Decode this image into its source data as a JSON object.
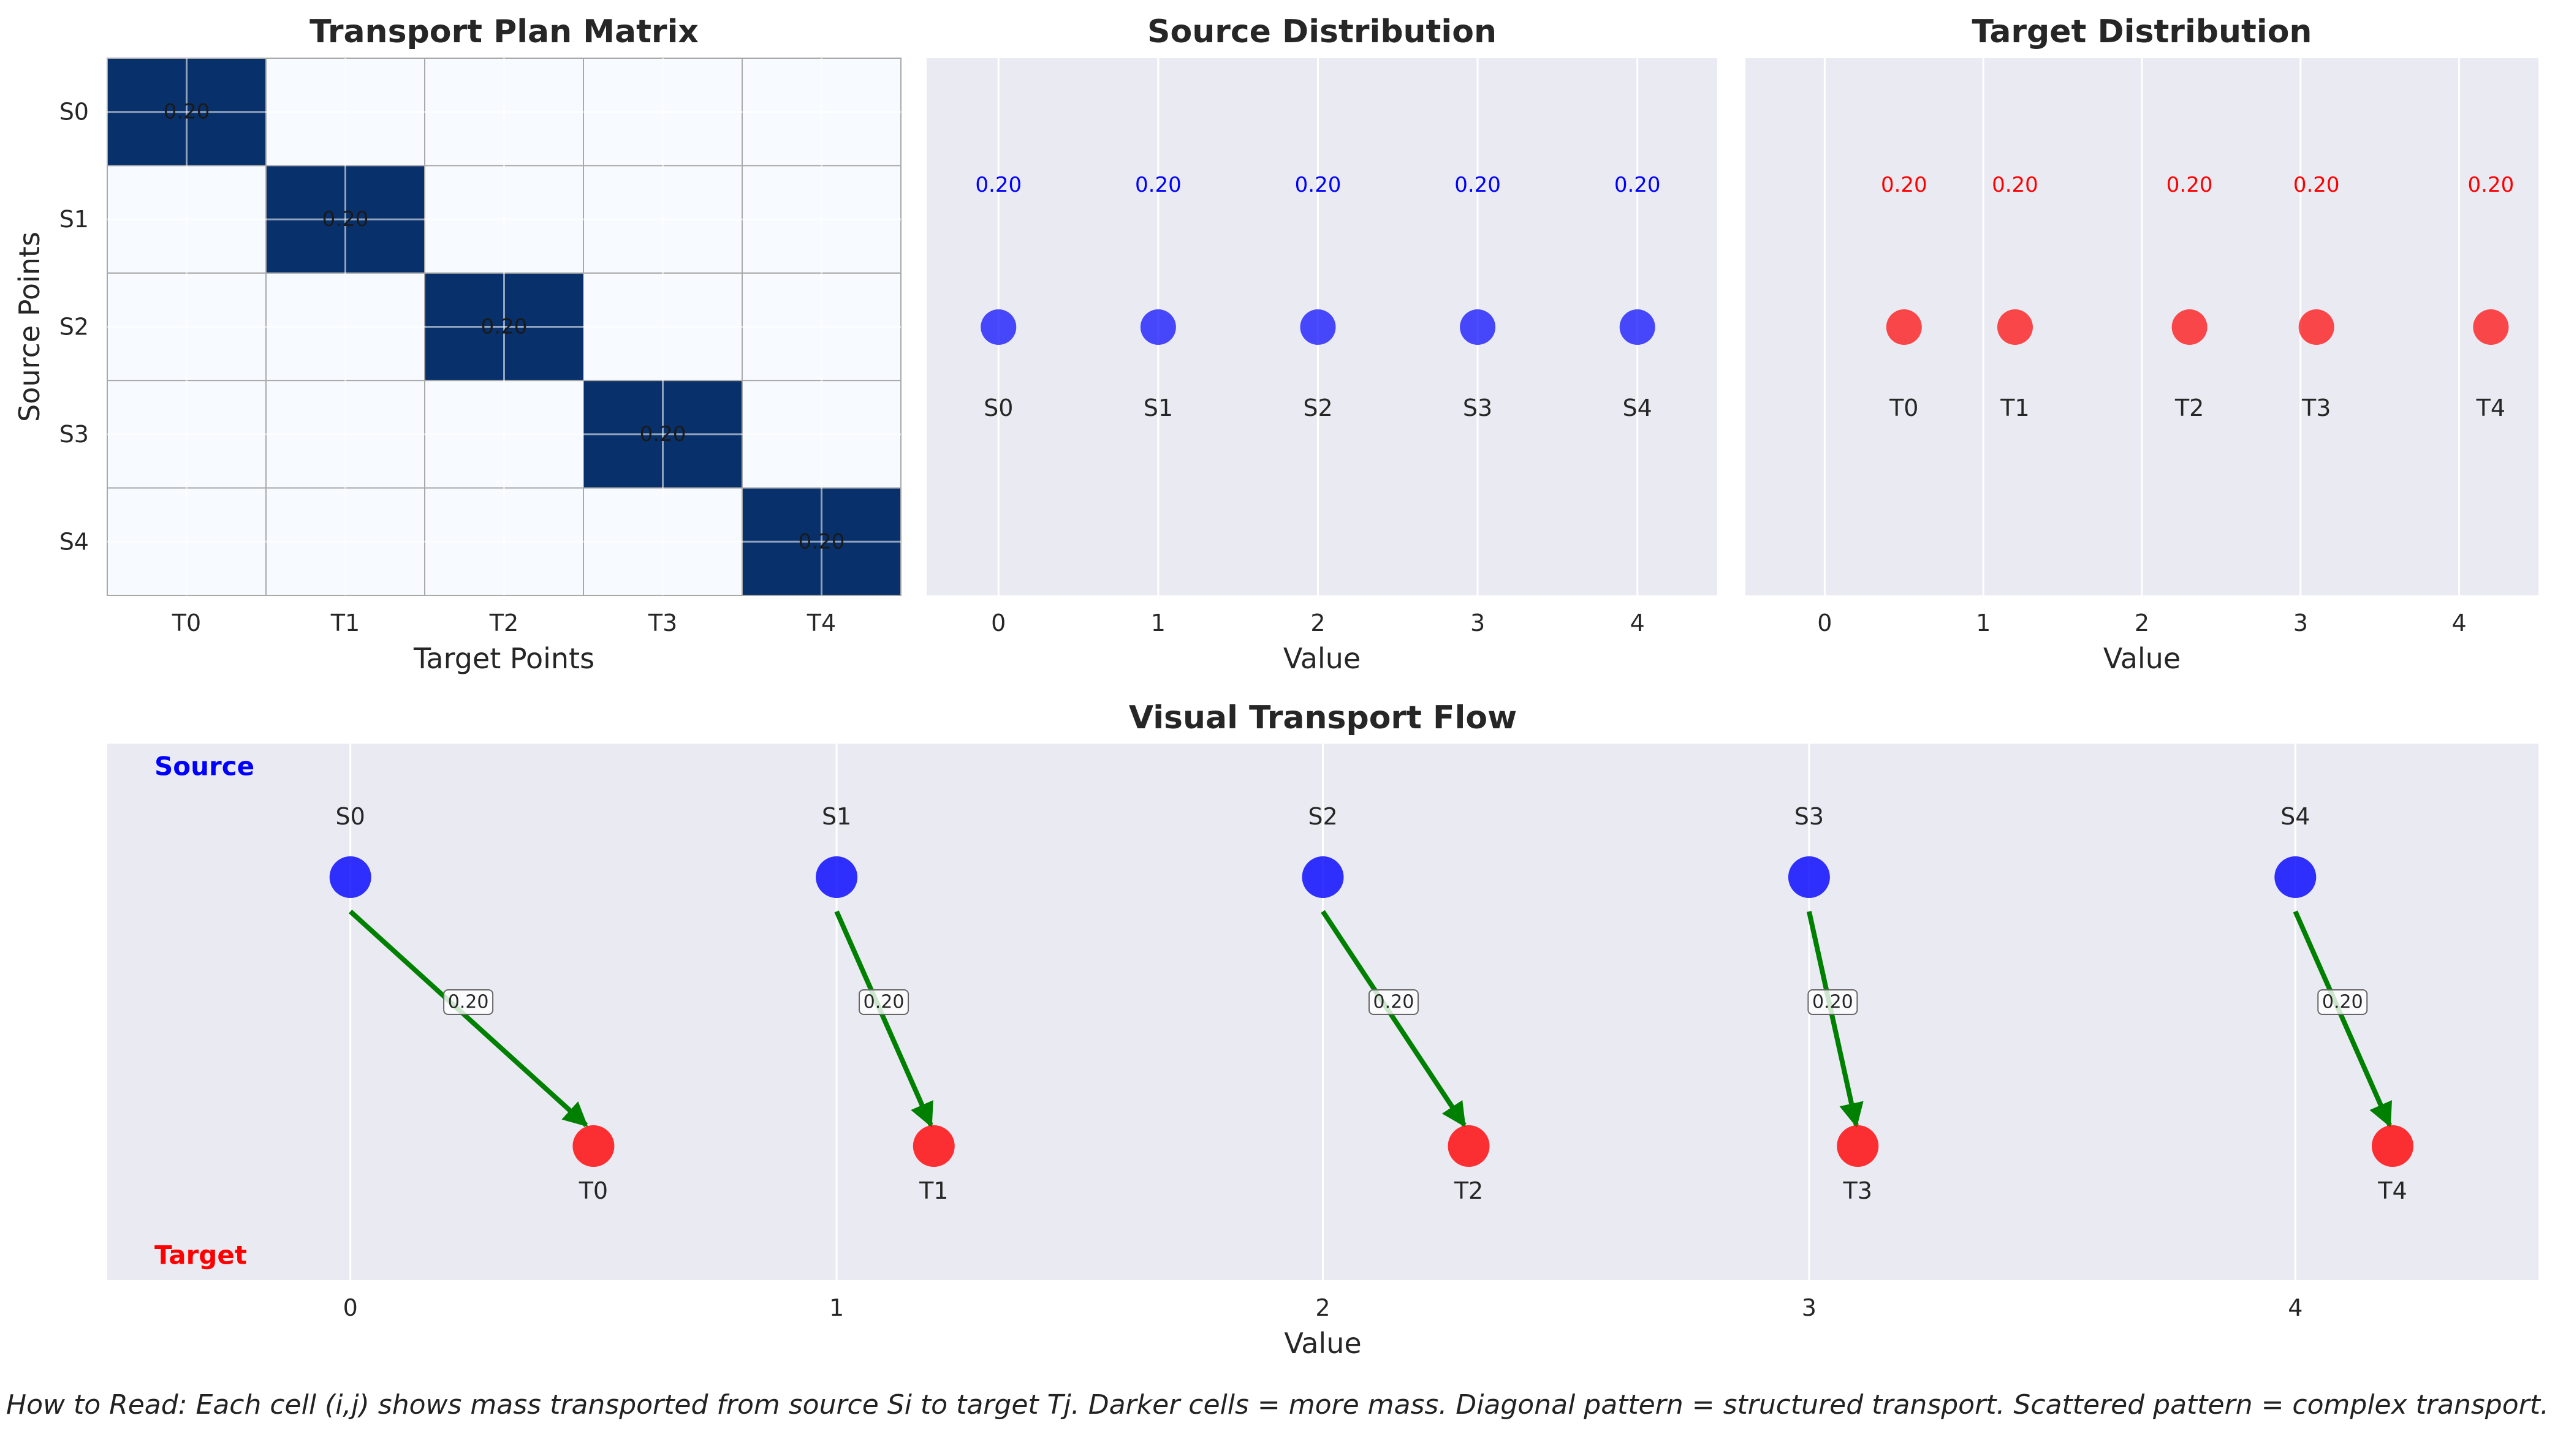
{
  "colors": {
    "panel_bg": "#eaeaf2",
    "grid": "#ffffff",
    "heat_high": "#08306b",
    "heat_low": "#f7fbff",
    "source": "#0000ff",
    "target": "#ff0000",
    "arrow": "#008000",
    "text": "#262626"
  },
  "caption": "How to Read: Each cell (i,j) shows mass transported from source Si to target Tj. Darker cells = more mass. Diagonal pattern = structured transport. Scattered pattern = complex transport.",
  "chart_data": [
    {
      "id": "matrix",
      "type": "heatmap",
      "title": "Transport Plan Matrix",
      "xlabel": "Target Points",
      "ylabel": "Source Points",
      "row_labels": [
        "S0",
        "S1",
        "S2",
        "S3",
        "S4"
      ],
      "col_labels": [
        "T0",
        "T1",
        "T2",
        "T3",
        "T4"
      ],
      "values": [
        [
          0.2,
          0,
          0,
          0,
          0
        ],
        [
          0,
          0.2,
          0,
          0,
          0
        ],
        [
          0,
          0,
          0.2,
          0,
          0
        ],
        [
          0,
          0,
          0,
          0.2,
          0
        ],
        [
          0,
          0,
          0,
          0,
          0.2
        ]
      ],
      "cell_labels": [
        "0.20",
        "0.20",
        "0.20",
        "0.20",
        "0.20"
      ]
    },
    {
      "id": "source",
      "type": "scatter",
      "title": "Source Distribution",
      "xlabel": "Value",
      "xlim": [
        -0.45,
        4.5
      ],
      "x": [
        0,
        1,
        2,
        3,
        4
      ],
      "point_labels": [
        "S0",
        "S1",
        "S2",
        "S3",
        "S4"
      ],
      "value_labels": [
        "0.20",
        "0.20",
        "0.20",
        "0.20",
        "0.20"
      ],
      "xticks": [
        "0",
        "1",
        "2",
        "3",
        "4"
      ]
    },
    {
      "id": "target",
      "type": "scatter",
      "title": "Target Distribution",
      "xlabel": "Value",
      "xlim": [
        -0.5,
        4.5
      ],
      "x": [
        0.5,
        1.2,
        2.3,
        3.1,
        4.2
      ],
      "point_labels": [
        "T0",
        "T1",
        "T2",
        "T3",
        "T4"
      ],
      "value_labels": [
        "0.20",
        "0.20",
        "0.20",
        "0.20",
        "0.20"
      ],
      "xticks": [
        "0",
        "1",
        "2",
        "3",
        "4"
      ]
    },
    {
      "id": "flow",
      "type": "scatter",
      "title": "Visual Transport Flow",
      "xlabel": "Value",
      "xlim": [
        -0.5,
        4.5
      ],
      "source_x": [
        0,
        1,
        2,
        3,
        4
      ],
      "target_x": [
        0.5,
        1.2,
        2.3,
        3.1,
        4.2
      ],
      "source_labels": [
        "S0",
        "S1",
        "S2",
        "S3",
        "S4"
      ],
      "target_labels": [
        "T0",
        "T1",
        "T2",
        "T3",
        "T4"
      ],
      "flow_labels": [
        "0.20",
        "0.20",
        "0.20",
        "0.20",
        "0.20"
      ],
      "source_row_label": "Source",
      "target_row_label": "Target",
      "xticks": [
        "0",
        "1",
        "2",
        "3",
        "4"
      ]
    }
  ]
}
